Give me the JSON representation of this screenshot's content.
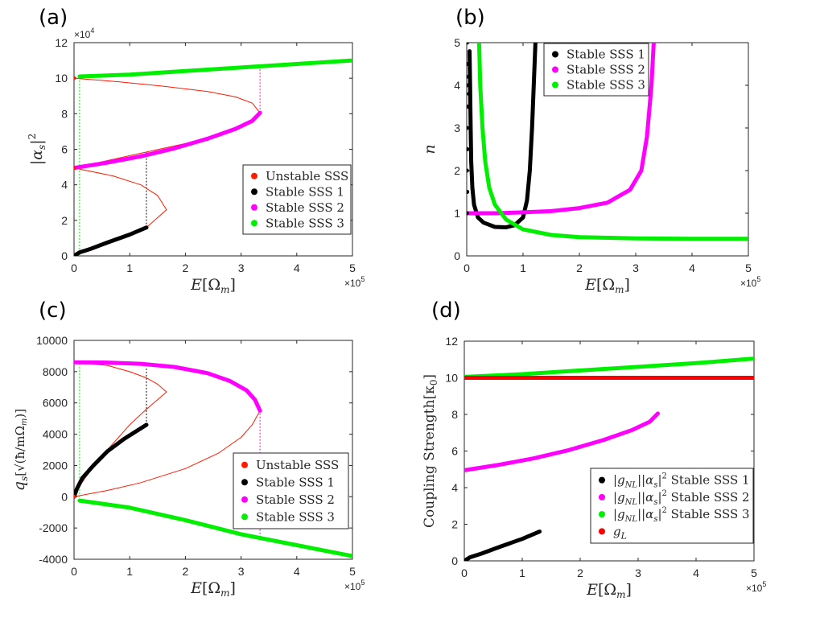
{
  "colors": {
    "unstable": "#ff1a00",
    "sss1": "#000000",
    "sss2": "#ff00ff",
    "sss3": "#00ee00",
    "gL": "#ff0000"
  },
  "chart_data": [
    {
      "panel_label": "(a)",
      "type": "line",
      "ylabel": "|αs|²",
      "xlabel": "E[Ωm]",
      "x_multiplier": "×10⁵",
      "y_multiplier": "×10⁴",
      "xlim": [
        0,
        5
      ],
      "ylim": [
        0,
        12
      ],
      "xticks": [
        "0",
        "1",
        "2",
        "3",
        "4",
        "5"
      ],
      "yticks": [
        "0",
        "2",
        "4",
        "6",
        "8",
        "10",
        "12"
      ],
      "legend_position": "lower-right",
      "legend": [
        "Unstable SSS",
        "Stable SSS 1",
        "Stable SSS 2",
        "Stable SSS 3"
      ],
      "series": [
        {
          "name": "Unstable SSS",
          "style": "thin",
          "color_key": "unstable",
          "points": [
            [
              0,
              10.0
            ],
            [
              0.8,
              9.8
            ],
            [
              1.6,
              9.55
            ],
            [
              2.4,
              9.25
            ],
            [
              2.9,
              8.95
            ],
            [
              3.2,
              8.6
            ],
            [
              3.34,
              8.05
            ],
            [
              3.2,
              7.5
            ],
            [
              2.9,
              7.1
            ],
            [
              2.4,
              6.6
            ],
            [
              1.6,
              6.05
            ],
            [
              0.8,
              5.5
            ],
            [
              0,
              4.95
            ],
            [
              0.7,
              4.5
            ],
            [
              1.2,
              4.0
            ],
            [
              1.5,
              3.4
            ],
            [
              1.66,
              2.6
            ],
            [
              1.5,
              2.15
            ],
            [
              1.3,
              1.6
            ]
          ]
        },
        {
          "name": "Stable SSS 1",
          "style": "thick",
          "color_key": "sss1",
          "points": [
            [
              0,
              0
            ],
            [
              0.1,
              0.2
            ],
            [
              0.3,
              0.4
            ],
            [
              0.6,
              0.75
            ],
            [
              1.0,
              1.2
            ],
            [
              1.3,
              1.6
            ]
          ]
        },
        {
          "name": "Stable SSS 2",
          "style": "thick",
          "color_key": "sss2",
          "points": [
            [
              0,
              4.95
            ],
            [
              0.6,
              5.25
            ],
            [
              1.2,
              5.6
            ],
            [
              1.8,
              6.05
            ],
            [
              2.4,
              6.6
            ],
            [
              2.9,
              7.15
            ],
            [
              3.2,
              7.6
            ],
            [
              3.34,
              8.05
            ]
          ]
        },
        {
          "name": "Stable SSS 3",
          "style": "thick",
          "color_key": "sss3",
          "points": [
            [
              0.1,
              10.1
            ],
            [
              1,
              10.2
            ],
            [
              2,
              10.4
            ],
            [
              3,
              10.6
            ],
            [
              4,
              10.8
            ],
            [
              5,
              11.0
            ]
          ]
        }
      ],
      "markers": [
        {
          "points": [
            [
              0,
              4.95
            ],
            [
              0,
              10.0
            ]
          ],
          "color_key": "unstable"
        }
      ],
      "guides": [
        {
          "x": 0.1,
          "y0": 0,
          "y1": 10.1,
          "color_key": "sss3"
        },
        {
          "x": 1.3,
          "y0": 1.6,
          "y1": 5.9,
          "color_key": "sss1"
        },
        {
          "x": 3.34,
          "y0": 8.05,
          "y1": 10.65,
          "color_key": "sss2"
        }
      ]
    },
    {
      "panel_label": "(b)",
      "type": "line",
      "ylabel": "n",
      "xlabel": "E[Ωm]",
      "x_multiplier": "×10⁵",
      "y_multiplier": "",
      "xlim": [
        0,
        5
      ],
      "ylim": [
        0,
        5
      ],
      "xticks": [
        "0",
        "1",
        "2",
        "3",
        "4",
        "5"
      ],
      "yticks": [
        "0",
        "1",
        "2",
        "3",
        "4",
        "5"
      ],
      "legend_position": "top-center",
      "legend": [
        "Stable SSS 1",
        "Stable SSS 2",
        "Stable SSS 3"
      ],
      "series": [
        {
          "name": "Stable SSS 1",
          "style": "thick",
          "color_key": "sss1",
          "points": [
            [
              0.05,
              4.8
            ],
            [
              0.06,
              4.0
            ],
            [
              0.07,
              3.0
            ],
            [
              0.08,
              2.2
            ],
            [
              0.1,
              1.6
            ],
            [
              0.13,
              1.2
            ],
            [
              0.2,
              0.9
            ],
            [
              0.3,
              0.78
            ],
            [
              0.5,
              0.68
            ],
            [
              0.7,
              0.67
            ],
            [
              0.85,
              0.72
            ],
            [
              1.0,
              0.9
            ],
            [
              1.07,
              1.3
            ],
            [
              1.12,
              2.0
            ],
            [
              1.16,
              3.0
            ],
            [
              1.19,
              4.0
            ],
            [
              1.22,
              5.0
            ]
          ]
        },
        {
          "name": "Stable SSS 2",
          "style": "thick",
          "color_key": "sss2",
          "points": [
            [
              0,
              1.0
            ],
            [
              0.5,
              1.0
            ],
            [
              1,
              1.02
            ],
            [
              1.5,
              1.05
            ],
            [
              2,
              1.12
            ],
            [
              2.5,
              1.25
            ],
            [
              2.9,
              1.55
            ],
            [
              3.1,
              2.0
            ],
            [
              3.2,
              2.8
            ],
            [
              3.28,
              4.0
            ],
            [
              3.32,
              5.0
            ]
          ]
        },
        {
          "name": "Stable SSS 3",
          "style": "thick",
          "color_key": "sss3",
          "points": [
            [
              0.22,
              5.0
            ],
            [
              0.24,
              4.0
            ],
            [
              0.28,
              3.0
            ],
            [
              0.33,
              2.2
            ],
            [
              0.4,
              1.6
            ],
            [
              0.5,
              1.2
            ],
            [
              0.7,
              0.85
            ],
            [
              1.0,
              0.62
            ],
            [
              1.5,
              0.49
            ],
            [
              2,
              0.44
            ],
            [
              3,
              0.41
            ],
            [
              4,
              0.4
            ],
            [
              5,
              0.4
            ]
          ]
        }
      ],
      "markers": [
        {
          "points": [
            [
              0.005,
              1.0
            ],
            [
              0.005,
              2.0
            ],
            [
              0.006,
              3.0
            ],
            [
              0.006,
              4.0
            ],
            [
              0.007,
              5.0
            ],
            [
              0.01,
              1.5
            ],
            [
              0.012,
              2.5
            ],
            [
              0.015,
              3.5
            ],
            [
              0.02,
              4.5
            ],
            [
              0.03,
              4.2
            ],
            [
              0.04,
              3.8
            ]
          ],
          "color_key": "sss1"
        }
      ],
      "guides": []
    },
    {
      "panel_label": "(c)",
      "type": "line",
      "ylabel": "qs[√(ħ/mΩm)]",
      "xlabel": "E[Ωm]",
      "x_multiplier": "×10⁵",
      "y_multiplier": "",
      "xlim": [
        0,
        5
      ],
      "ylim": [
        -4000,
        10000
      ],
      "xticks": [
        "0",
        "1",
        "2",
        "3",
        "4",
        "5"
      ],
      "yticks": [
        "-4000",
        "-2000",
        "0",
        "2000",
        "4000",
        "6000",
        "8000",
        "10000"
      ],
      "legend_position": "lower-right",
      "legend": [
        "Unstable SSS",
        "Stable SSS 1",
        "Stable SSS 2",
        "Stable SSS 3"
      ],
      "series": [
        {
          "name": "Unstable SSS",
          "style": "thin",
          "color_key": "unstable",
          "points": [
            [
              0,
              8600
            ],
            [
              0.6,
              8400
            ],
            [
              1.0,
              8000
            ],
            [
              1.3,
              7600
            ],
            [
              1.5,
              7200
            ],
            [
              1.66,
              6700
            ],
            [
              1.5,
              6200
            ],
            [
              1.3,
              5600
            ],
            [
              1.0,
              4600
            ],
            [
              0.6,
              3000
            ],
            [
              0.3,
              1700
            ],
            [
              0.1,
              700
            ],
            [
              0,
              0
            ],
            [
              0.6,
              400
            ],
            [
              1.2,
              900
            ],
            [
              2.0,
              1800
            ],
            [
              2.6,
              2800
            ],
            [
              3.0,
              3800
            ],
            [
              3.2,
              4600
            ],
            [
              3.34,
              5500
            ]
          ]
        },
        {
          "name": "Stable SSS 1",
          "style": "thick",
          "color_key": "sss1",
          "points": [
            [
              0,
              0
            ],
            [
              0.05,
              500
            ],
            [
              0.15,
              1200
            ],
            [
              0.35,
              2000
            ],
            [
              0.6,
              2900
            ],
            [
              0.9,
              3700
            ],
            [
              1.3,
              4600
            ]
          ]
        },
        {
          "name": "Stable SSS 2",
          "style": "thick",
          "color_key": "sss2",
          "points": [
            [
              0,
              8600
            ],
            [
              0.6,
              8580
            ],
            [
              1.2,
              8500
            ],
            [
              1.8,
              8300
            ],
            [
              2.4,
              7900
            ],
            [
              2.8,
              7400
            ],
            [
              3.1,
              6800
            ],
            [
              3.25,
              6200
            ],
            [
              3.34,
              5500
            ]
          ]
        },
        {
          "name": "Stable SSS 3",
          "style": "thick",
          "color_key": "sss3",
          "points": [
            [
              0.1,
              -250
            ],
            [
              1,
              -700
            ],
            [
              2,
              -1500
            ],
            [
              3,
              -2400
            ],
            [
              4,
              -3100
            ],
            [
              5,
              -3800
            ]
          ]
        }
      ],
      "markers": [
        {
          "points": [
            [
              0,
              0
            ]
          ],
          "color_key": "unstable"
        }
      ],
      "guides": [
        {
          "x": 0.1,
          "y0": -250,
          "y1": 8600,
          "color_key": "sss3"
        },
        {
          "x": 1.3,
          "y0": 4600,
          "y1": 8200,
          "color_key": "sss1"
        },
        {
          "x": 3.34,
          "y0": -2600,
          "y1": 5500,
          "color_key": "sss2"
        }
      ]
    },
    {
      "panel_label": "(d)",
      "type": "line",
      "ylabel": "Coupling Strength[κ0]",
      "xlabel": "E[Ωm]",
      "x_multiplier": "×10⁵",
      "y_multiplier": "",
      "xlim": [
        0,
        5
      ],
      "ylim": [
        0,
        12
      ],
      "xticks": [
        "0",
        "1",
        "2",
        "3",
        "4",
        "5"
      ],
      "yticks": [
        "0",
        "2",
        "4",
        "6",
        "8",
        "10",
        "12"
      ],
      "legend_position": "lower-right",
      "legend": [
        "|gNL||αs|² Stable SSS 1",
        "|gNL||αs|² Stable SSS 2",
        "|gNL||αs|² Stable SSS 3",
        "gL"
      ],
      "series": [
        {
          "name": "|gNL||αs|² Stable SSS 1",
          "style": "thick",
          "color_key": "sss1",
          "points": [
            [
              0,
              0
            ],
            [
              0.1,
              0.2
            ],
            [
              0.3,
              0.4
            ],
            [
              0.6,
              0.75
            ],
            [
              1.0,
              1.2
            ],
            [
              1.3,
              1.6
            ]
          ]
        },
        {
          "name": "|gNL||αs|² Stable SSS 2",
          "style": "thick",
          "color_key": "sss2",
          "points": [
            [
              0,
              4.95
            ],
            [
              0.6,
              5.25
            ],
            [
              1.2,
              5.6
            ],
            [
              1.8,
              6.05
            ],
            [
              2.4,
              6.6
            ],
            [
              2.9,
              7.15
            ],
            [
              3.2,
              7.6
            ],
            [
              3.34,
              8.05
            ]
          ]
        },
        {
          "name": "|gNL||αs|² Stable SSS 3",
          "style": "thick",
          "color_key": "sss3",
          "points": [
            [
              0,
              10.05
            ],
            [
              1,
              10.2
            ],
            [
              2,
              10.4
            ],
            [
              3,
              10.6
            ],
            [
              4,
              10.8
            ],
            [
              5,
              11.05
            ]
          ]
        },
        {
          "name": "gL",
          "style": "thick",
          "color_key": "gL",
          "points": [
            [
              0,
              10.0
            ],
            [
              5,
              10.0
            ]
          ]
        }
      ],
      "markers": [],
      "guides": []
    }
  ]
}
